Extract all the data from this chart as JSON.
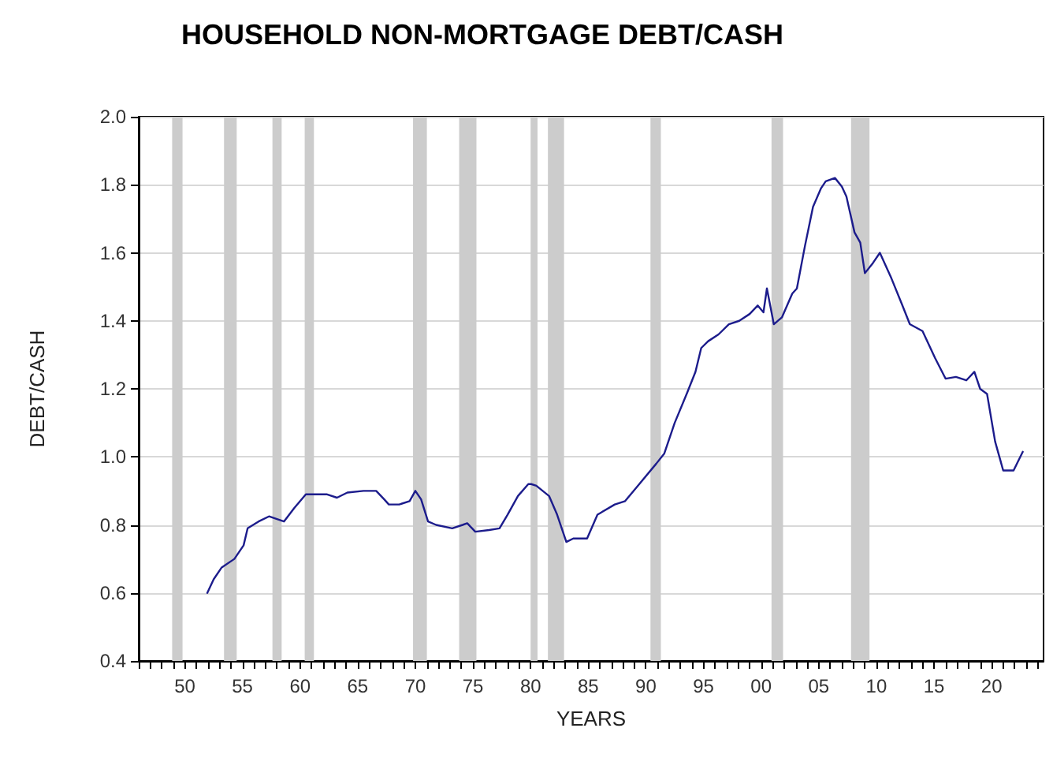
{
  "chart_data": {
    "type": "line",
    "title": "HOUSEHOLD NON-MORTGAGE DEBT/CASH",
    "xlabel": "YEARS",
    "ylabel": "DEBT/CASH",
    "x": [
      1951.95,
      1952.5,
      1953.2,
      1954.3,
      1955.1,
      1955.45,
      1956.4,
      1957.3,
      1958.6,
      1959.5,
      1960.5,
      1961.4,
      1962.3,
      1963.2,
      1964.1,
      1965.5,
      1966.6,
      1967.3,
      1967.7,
      1968.6,
      1969.5,
      1970.0,
      1970.5,
      1971.1,
      1971.8,
      1973.2,
      1974.1,
      1974.5,
      1975.2,
      1976.4,
      1977.3,
      1978.0,
      1978.9,
      1979.8,
      1980.05,
      1980.5,
      1981.6,
      1982.3,
      1983.1,
      1983.7,
      1984.9,
      1985.8,
      1987.3,
      1988.2,
      1989.3,
      1990.9,
      1991.6,
      1992.5,
      1993.6,
      1994.3,
      1994.8,
      1995.4,
      1996.3,
      1997.2,
      1998.1,
      1999.0,
      1999.7,
      2000.2,
      2000.5,
      2001.1,
      2001.8,
      2002.7,
      2003.1,
      2003.8,
      2004.5,
      2005.2,
      2005.6,
      2006.4,
      2007.0,
      2007.4,
      2008.1,
      2008.6,
      2009.0,
      2009.7,
      2010.3,
      2011.3,
      2012.2,
      2012.9,
      2014.0,
      2015.1,
      2016.0,
      2016.9,
      2017.8,
      2018.5,
      2019.0,
      2019.6,
      2020.3,
      2021.0,
      2021.9,
      2022.7
    ],
    "series": [
      {
        "color": "#1c1c8c",
        "values": [
          0.6,
          0.64,
          0.675,
          0.7,
          0.74,
          0.79,
          0.81,
          0.825,
          0.81,
          0.85,
          0.89,
          0.89,
          0.89,
          0.88,
          0.895,
          0.9,
          0.9,
          0.875,
          0.86,
          0.86,
          0.87,
          0.9,
          0.875,
          0.81,
          0.8,
          0.79,
          0.8,
          0.805,
          0.78,
          0.785,
          0.79,
          0.83,
          0.885,
          0.92,
          0.92,
          0.915,
          0.885,
          0.83,
          0.75,
          0.76,
          0.76,
          0.83,
          0.86,
          0.87,
          0.915,
          0.98,
          1.01,
          1.1,
          1.19,
          1.25,
          1.32,
          1.34,
          1.36,
          1.39,
          1.4,
          1.42,
          1.445,
          1.425,
          1.495,
          1.39,
          1.41,
          1.48,
          1.495,
          1.62,
          1.735,
          1.79,
          1.81,
          1.82,
          1.795,
          1.765,
          1.66,
          1.63,
          1.54,
          1.57,
          1.6,
          1.525,
          1.45,
          1.39,
          1.37,
          1.29,
          1.23,
          1.235,
          1.225,
          1.25,
          1.2,
          1.185,
          1.045,
          0.96,
          0.96,
          1.015
        ]
      }
    ],
    "xlim": [
      1946,
      2024.5
    ],
    "xticks": [
      {
        "value": 1946,
        "label": null
      },
      {
        "value": 1947,
        "label": null
      },
      {
        "value": 1948,
        "label": null
      },
      {
        "value": 1949,
        "label": null
      },
      {
        "value": 1950,
        "label": "50"
      },
      {
        "value": 1951,
        "label": null
      },
      {
        "value": 1952,
        "label": null
      },
      {
        "value": 1953,
        "label": null
      },
      {
        "value": 1954,
        "label": null
      },
      {
        "value": 1955,
        "label": "55"
      },
      {
        "value": 1956,
        "label": null
      },
      {
        "value": 1957,
        "label": null
      },
      {
        "value": 1958,
        "label": null
      },
      {
        "value": 1959,
        "label": null
      },
      {
        "value": 1960,
        "label": "60"
      },
      {
        "value": 1961,
        "label": null
      },
      {
        "value": 1962,
        "label": null
      },
      {
        "value": 1963,
        "label": null
      },
      {
        "value": 1964,
        "label": null
      },
      {
        "value": 1965,
        "label": "65"
      },
      {
        "value": 1966,
        "label": null
      },
      {
        "value": 1967,
        "label": null
      },
      {
        "value": 1968,
        "label": null
      },
      {
        "value": 1969,
        "label": null
      },
      {
        "value": 1970,
        "label": "70"
      },
      {
        "value": 1971,
        "label": null
      },
      {
        "value": 1972,
        "label": null
      },
      {
        "value": 1973,
        "label": null
      },
      {
        "value": 1974,
        "label": null
      },
      {
        "value": 1975,
        "label": "75"
      },
      {
        "value": 1976,
        "label": null
      },
      {
        "value": 1977,
        "label": null
      },
      {
        "value": 1978,
        "label": null
      },
      {
        "value": 1979,
        "label": null
      },
      {
        "value": 1980,
        "label": "80"
      },
      {
        "value": 1981,
        "label": null
      },
      {
        "value": 1982,
        "label": null
      },
      {
        "value": 1983,
        "label": null
      },
      {
        "value": 1984,
        "label": null
      },
      {
        "value": 1985,
        "label": "85"
      },
      {
        "value": 1986,
        "label": null
      },
      {
        "value": 1987,
        "label": null
      },
      {
        "value": 1988,
        "label": null
      },
      {
        "value": 1989,
        "label": null
      },
      {
        "value": 1990,
        "label": "90"
      },
      {
        "value": 1991,
        "label": null
      },
      {
        "value": 1992,
        "label": null
      },
      {
        "value": 1993,
        "label": null
      },
      {
        "value": 1994,
        "label": null
      },
      {
        "value": 1995,
        "label": "95"
      },
      {
        "value": 1996,
        "label": null
      },
      {
        "value": 1997,
        "label": null
      },
      {
        "value": 1998,
        "label": null
      },
      {
        "value": 1999,
        "label": null
      },
      {
        "value": 2000,
        "label": "00"
      },
      {
        "value": 2001,
        "label": null
      },
      {
        "value": 2002,
        "label": null
      },
      {
        "value": 2003,
        "label": null
      },
      {
        "value": 2004,
        "label": null
      },
      {
        "value": 2005,
        "label": "05"
      },
      {
        "value": 2006,
        "label": null
      },
      {
        "value": 2007,
        "label": null
      },
      {
        "value": 2008,
        "label": null
      },
      {
        "value": 2009,
        "label": null
      },
      {
        "value": 2010,
        "label": "10"
      },
      {
        "value": 2011,
        "label": null
      },
      {
        "value": 2012,
        "label": null
      },
      {
        "value": 2013,
        "label": null
      },
      {
        "value": 2014,
        "label": null
      },
      {
        "value": 2015,
        "label": "15"
      },
      {
        "value": 2016,
        "label": null
      },
      {
        "value": 2017,
        "label": null
      },
      {
        "value": 2018,
        "label": null
      },
      {
        "value": 2019,
        "label": null
      },
      {
        "value": 2020,
        "label": "20"
      },
      {
        "value": 2021,
        "label": null
      },
      {
        "value": 2022,
        "label": null
      },
      {
        "value": 2023,
        "label": null
      },
      {
        "value": 2024,
        "label": null
      }
    ],
    "ylim": [
      0.4,
      2.0
    ],
    "yticks": [
      0.4,
      0.6,
      0.8,
      {
        "value": 1.0,
        "label": "1.0"
      },
      1.2,
      1.4,
      1.6,
      1.8,
      {
        "value": 2.0,
        "label": "2.0"
      }
    ],
    "grid": "y",
    "marker": "none",
    "line_style": "solid",
    "bands": [
      {
        "axis": "x",
        "from": 1948.9,
        "to": 1949.8,
        "color": "#cccccc"
      },
      {
        "axis": "x",
        "from": 1953.4,
        "to": 1954.5,
        "color": "#cccccc"
      },
      {
        "axis": "x",
        "from": 1957.6,
        "to": 1958.4,
        "color": "#cccccc"
      },
      {
        "axis": "x",
        "from": 1960.4,
        "to": 1961.2,
        "color": "#cccccc"
      },
      {
        "axis": "x",
        "from": 1969.8,
        "to": 1971.0,
        "color": "#cccccc"
      },
      {
        "axis": "x",
        "from": 1973.8,
        "to": 1975.3,
        "color": "#cccccc"
      },
      {
        "axis": "x",
        "from": 1980.0,
        "to": 1980.6,
        "color": "#cccccc"
      },
      {
        "axis": "x",
        "from": 1981.5,
        "to": 1982.9,
        "color": "#cccccc"
      },
      {
        "axis": "x",
        "from": 1990.4,
        "to": 1991.3,
        "color": "#cccccc"
      },
      {
        "axis": "x",
        "from": 2000.9,
        "to": 2001.9,
        "color": "#cccccc"
      },
      {
        "axis": "x",
        "from": 2007.8,
        "to": 2009.4,
        "color": "#cccccc"
      }
    ]
  }
}
